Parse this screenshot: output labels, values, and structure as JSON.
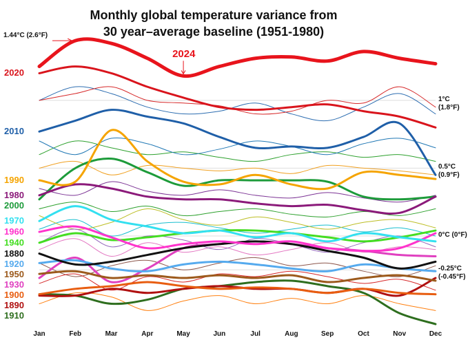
{
  "chart_data": {
    "type": "line",
    "title": [
      "Monthly global temperature variance from",
      "30 year–average baseline (1951-1980)"
    ],
    "annotations": [
      "1.44°C (2.6°F)"
    ],
    "categories": [
      "Jan",
      "Feb",
      "Mar",
      "Apr",
      "May",
      "Jun",
      "Jul",
      "Aug",
      "Sep",
      "Oct",
      "Nov",
      "Dec"
    ],
    "ylim": [
      -0.67,
      1.74
    ],
    "yticks": [
      {
        "value": 1,
        "label": "1°C (1.8°F)"
      },
      {
        "value": 0.5,
        "label": "0.5°C (0.9°F)"
      },
      {
        "value": 0,
        "label": "0°C (0°F)"
      },
      {
        "value": -0.25,
        "label": "-0.25°C (-0.45°F)"
      }
    ],
    "grid": true,
    "series": [
      {
        "name": "2024",
        "color": "#e8141c",
        "values": [
          1.25,
          1.44,
          1.42,
          1.31,
          1.18,
          1.25,
          1.31,
          1.32,
          1.29,
          1.36,
          1.31,
          1.27
        ]
      },
      {
        "name": "2020",
        "color": "#d9141c",
        "values": [
          1.2,
          1.25,
          1.2,
          1.1,
          1.02,
          0.95,
          0.93,
          0.95,
          0.97,
          0.92,
          0.88,
          0.8
        ]
      },
      {
        "name": "2010",
        "color": "#1f5fa8",
        "values": [
          0.77,
          0.85,
          0.93,
          0.88,
          0.83,
          0.73,
          0.65,
          0.66,
          0.65,
          0.73,
          0.83,
          0.45
        ]
      },
      {
        "name": "1990",
        "color": "#f5a400",
        "values": [
          0.41,
          0.4,
          0.78,
          0.55,
          0.4,
          0.38,
          0.45,
          0.38,
          0.35,
          0.47,
          0.45,
          0.42
        ]
      },
      {
        "name": "1980",
        "color": "#8b1a7a",
        "values": [
          0.3,
          0.38,
          0.35,
          0.29,
          0.27,
          0.27,
          0.24,
          0.22,
          0.23,
          0.19,
          0.17,
          0.29
        ]
      },
      {
        "name": "2000",
        "color": "#1d9b3a",
        "values": [
          0.27,
          0.5,
          0.57,
          0.47,
          0.37,
          0.41,
          0.41,
          0.41,
          0.4,
          0.29,
          0.27,
          0.29
        ]
      },
      {
        "name": "1970",
        "color": "#33e0f0",
        "values": [
          0.11,
          0.22,
          0.12,
          0.07,
          0.02,
          0.04,
          -0.01,
          0.02,
          -0.04,
          0.02,
          -0.01,
          -0.04
        ]
      },
      {
        "name": "1960",
        "color": "#ff33cc",
        "values": [
          0.03,
          0.07,
          -0.01,
          -0.09,
          -0.06,
          -0.04,
          -0.06,
          -0.04,
          -0.09,
          -0.11,
          -0.09,
          0.02
        ]
      },
      {
        "name": "1940",
        "color": "#44dd22",
        "values": [
          -0.05,
          0.02,
          -0.03,
          -0.01,
          0.02,
          0.04,
          0.04,
          0.02,
          -0.01,
          -0.04,
          -0.01,
          0.04
        ]
      },
      {
        "name": "1880",
        "color": "#111111",
        "values": [
          -0.13,
          -0.21,
          -0.19,
          -0.14,
          -0.09,
          -0.06,
          -0.04,
          -0.06,
          -0.11,
          -0.16,
          -0.24,
          -0.19
        ]
      },
      {
        "name": "1920",
        "color": "#55aaee",
        "values": [
          -0.2,
          -0.18,
          -0.24,
          -0.26,
          -0.21,
          -0.19,
          -0.21,
          -0.24,
          -0.26,
          -0.21,
          -0.24,
          -0.26
        ]
      },
      {
        "name": "1950",
        "color": "#9c5a1c",
        "values": [
          -0.28,
          -0.26,
          -0.31,
          -0.29,
          -0.31,
          -0.29,
          -0.31,
          -0.29,
          -0.34,
          -0.31,
          -0.29,
          -0.33
        ]
      },
      {
        "name": "1930",
        "color": "#e040c0",
        "values": [
          -0.31,
          -0.16,
          -0.34,
          -0.24,
          -0.09,
          -0.06,
          -0.04,
          -0.06,
          -0.09,
          -0.11,
          -0.14,
          -0.15
        ]
      },
      {
        "name": "1900",
        "color": "#e85d10",
        "values": [
          -0.43,
          -0.39,
          -0.37,
          -0.34,
          -0.37,
          -0.39,
          -0.38,
          -0.39,
          -0.42,
          -0.39,
          -0.42,
          -0.43
        ]
      },
      {
        "name": "1890",
        "color": "#b01010",
        "values": [
          -0.44,
          -0.44,
          -0.39,
          -0.42,
          -0.39,
          -0.37,
          -0.39,
          -0.39,
          -0.42,
          -0.39,
          -0.44,
          -0.31
        ]
      },
      {
        "name": "1910",
        "color": "#2e6e1e",
        "values": [
          -0.43,
          -0.44,
          -0.5,
          -0.47,
          -0.39,
          -0.37,
          -0.34,
          -0.33,
          -0.37,
          -0.42,
          -0.57,
          -0.65
        ]
      },
      {
        "color": "#2b6cb0",
        "values": [
          1.0,
          1.1,
          1.05,
          0.95,
          0.9,
          0.92,
          0.98,
          0.9,
          0.85,
          0.95,
          1.05,
          0.9
        ]
      },
      {
        "color": "#d62728",
        "values": [
          1.0,
          1.05,
          1.1,
          1.0,
          0.98,
          0.96,
          0.9,
          0.92,
          1.0,
          0.98,
          1.1,
          0.95
        ]
      },
      {
        "color": "#2ca02c",
        "values": [
          0.6,
          0.7,
          0.65,
          0.6,
          0.62,
          0.58,
          0.55,
          0.6,
          0.62,
          0.58,
          0.6,
          0.55
        ]
      },
      {
        "color": "#1f77b4",
        "values": [
          0.7,
          0.6,
          0.72,
          0.68,
          0.6,
          0.64,
          0.7,
          0.66,
          0.6,
          0.68,
          0.72,
          0.65
        ]
      },
      {
        "color": "#f0a020",
        "values": [
          0.5,
          0.55,
          0.45,
          0.52,
          0.5,
          0.48,
          0.5,
          0.46,
          0.52,
          0.5,
          0.48,
          0.45
        ]
      },
      {
        "color": "#7b3294",
        "values": [
          0.35,
          0.3,
          0.4,
          0.33,
          0.3,
          0.34,
          0.3,
          0.28,
          0.32,
          0.28,
          0.25,
          0.3
        ]
      },
      {
        "color": "#2ca02c",
        "values": [
          0.2,
          0.25,
          0.18,
          0.22,
          0.15,
          0.18,
          0.2,
          0.16,
          0.14,
          0.18,
          0.15,
          0.2
        ]
      },
      {
        "color": "#17becf",
        "values": [
          0.05,
          0.12,
          0.0,
          0.08,
          0.1,
          0.06,
          0.02,
          0.05,
          0.08,
          0.03,
          0.06,
          0.0
        ]
      },
      {
        "color": "#e377c2",
        "values": [
          -0.1,
          -0.02,
          -0.15,
          -0.05,
          -0.12,
          -0.08,
          -0.14,
          -0.1,
          -0.05,
          -0.12,
          -0.08,
          -0.1
        ]
      },
      {
        "color": "#8c564b",
        "values": [
          -0.2,
          -0.3,
          -0.22,
          -0.18,
          -0.25,
          -0.2,
          -0.16,
          -0.22,
          -0.2,
          -0.26,
          -0.3,
          -0.22
        ]
      },
      {
        "color": "#d62728",
        "values": [
          -0.35,
          -0.28,
          -0.4,
          -0.3,
          -0.34,
          -0.28,
          -0.3,
          -0.26,
          -0.3,
          -0.35,
          -0.32,
          -0.4
        ]
      },
      {
        "color": "#ff7f0e",
        "values": [
          -0.5,
          -0.42,
          -0.45,
          -0.55,
          -0.48,
          -0.44,
          -0.5,
          -0.46,
          -0.5,
          -0.44,
          -0.5,
          -0.55
        ]
      },
      {
        "color": "#bcbd22",
        "values": [
          0.15,
          0.05,
          0.1,
          0.2,
          0.12,
          0.08,
          0.14,
          0.1,
          0.05,
          0.1,
          0.12,
          0.06
        ]
      },
      {
        "color": "#9467bd",
        "values": [
          -0.05,
          0.05,
          -0.08,
          0.0,
          -0.03,
          -0.1,
          -0.02,
          -0.06,
          -0.12,
          -0.05,
          0.0,
          -0.08
        ]
      }
    ]
  }
}
